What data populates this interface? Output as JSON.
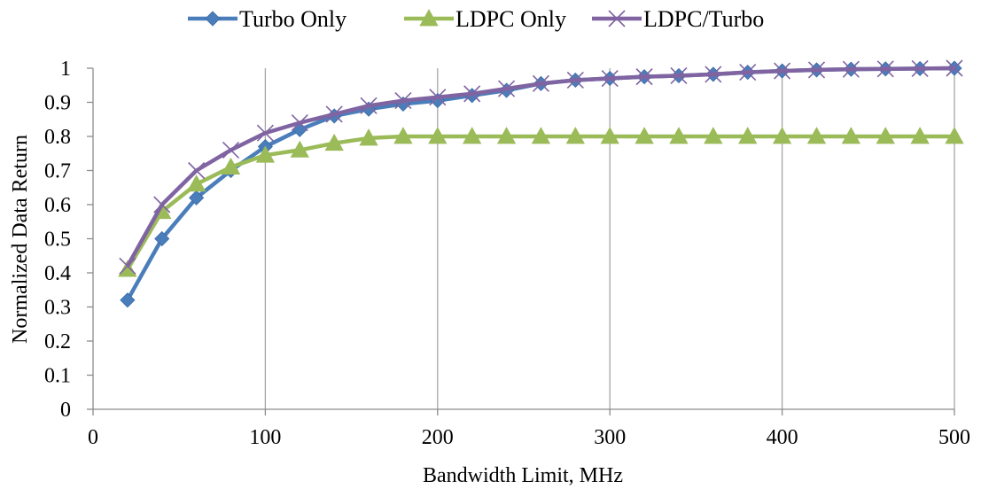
{
  "chart_data": {
    "type": "line",
    "title": "",
    "xlabel": "Bandwidth Limit, MHz",
    "ylabel": "Normalized Data Return",
    "xlim": [
      0,
      500
    ],
    "ylim": [
      0,
      1
    ],
    "x_ticks": [
      "0",
      "100",
      "200",
      "300",
      "400",
      "500"
    ],
    "y_ticks": [
      "0",
      "0.1",
      "0.2",
      "0.3",
      "0.4",
      "0.5",
      "0.6",
      "0.7",
      "0.8",
      "0.9",
      "1"
    ],
    "grid": "vertical",
    "legend_position": "top-center",
    "x": [
      20,
      40,
      60,
      80,
      100,
      120,
      140,
      160,
      180,
      200,
      220,
      240,
      260,
      280,
      300,
      320,
      340,
      360,
      380,
      400,
      420,
      440,
      460,
      480,
      500
    ],
    "series": [
      {
        "name": "Turbo Only",
        "color": "#4a7ebb",
        "marker": "diamond",
        "values": [
          0.32,
          0.5,
          0.62,
          0.7,
          0.77,
          0.82,
          0.86,
          0.88,
          0.895,
          0.905,
          0.92,
          0.935,
          0.955,
          0.965,
          0.97,
          0.975,
          0.978,
          0.982,
          0.988,
          0.992,
          0.995,
          0.997,
          0.998,
          0.999,
          1.0
        ]
      },
      {
        "name": "LDPC Only",
        "color": "#9bbb59",
        "marker": "triangle",
        "values": [
          0.41,
          0.58,
          0.66,
          0.71,
          0.745,
          0.76,
          0.78,
          0.795,
          0.8,
          0.8,
          0.8,
          0.8,
          0.8,
          0.8,
          0.8,
          0.8,
          0.8,
          0.8,
          0.8,
          0.8,
          0.8,
          0.8,
          0.8,
          0.8,
          0.8
        ]
      },
      {
        "name": "LDPC/Turbo",
        "color": "#8064a2",
        "marker": "x",
        "values": [
          0.42,
          0.6,
          0.7,
          0.76,
          0.81,
          0.84,
          0.865,
          0.89,
          0.905,
          0.915,
          0.925,
          0.94,
          0.955,
          0.965,
          0.97,
          0.975,
          0.978,
          0.982,
          0.988,
          0.992,
          0.995,
          0.997,
          0.998,
          0.999,
          1.0
        ]
      }
    ]
  }
}
